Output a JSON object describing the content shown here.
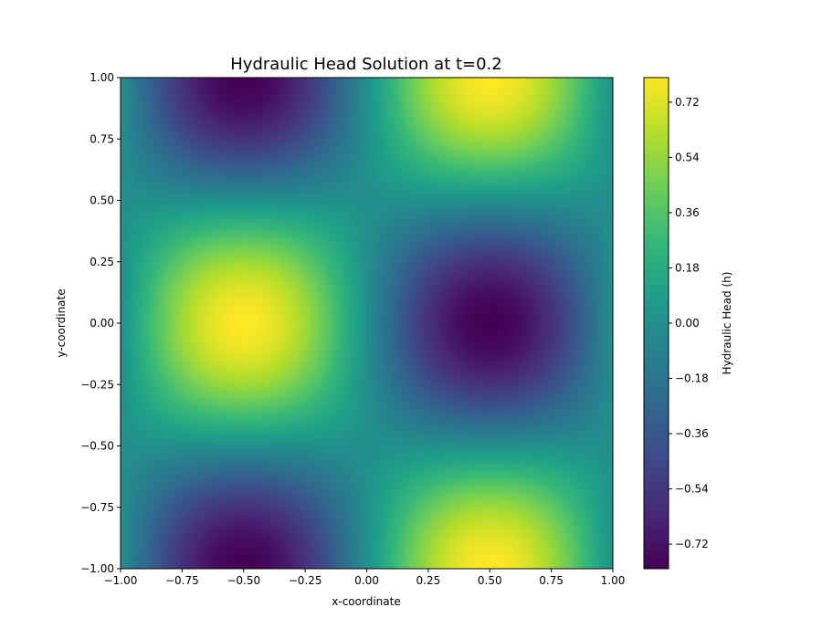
{
  "chart_data": {
    "type": "heatmap",
    "title": "Hydraulic Head Solution at t=0.2",
    "xlabel": "x-coordinate",
    "ylabel": "y-coordinate",
    "xlim": [
      -1.0,
      1.0
    ],
    "ylim": [
      -1.0,
      1.0
    ],
    "x_ticks": [
      -1.0,
      -0.75,
      -0.5,
      -0.25,
      0.0,
      0.25,
      0.5,
      0.75,
      1.0
    ],
    "y_ticks": [
      -1.0,
      -0.75,
      -0.5,
      -0.25,
      0.0,
      0.25,
      0.5,
      0.75,
      1.0
    ],
    "x_tick_labels": [
      "−1.00",
      "−0.75",
      "−0.50",
      "−0.25",
      "0.00",
      "0.25",
      "0.50",
      "0.75",
      "1.00"
    ],
    "y_tick_labels": [
      "−1.00",
      "−0.75",
      "−0.50",
      "−0.25",
      "0.00",
      "0.25",
      "0.50",
      "0.75",
      "1.00"
    ],
    "field": {
      "function": "-amplitude * sin(pi*x) * cos(pi*y)",
      "amplitude": 0.8,
      "grid": false
    },
    "colorbar": {
      "label": "Hydraulic Head (h)",
      "colormap": "viridis",
      "vmin": -0.8,
      "vmax": 0.8,
      "ticks": [
        -0.72,
        -0.54,
        -0.36,
        -0.18,
        0.0,
        0.18,
        0.36,
        0.54,
        0.72
      ],
      "tick_labels": [
        "−0.72",
        "−0.54",
        "−0.36",
        "−0.18",
        "0.00",
        "0.18",
        "0.36",
        "0.54",
        "0.72"
      ]
    },
    "viridis_stops": [
      "#440154",
      "#482878",
      "#3e4989",
      "#31688e",
      "#26828e",
      "#1f9e89",
      "#35b779",
      "#6ece58",
      "#b5de2b",
      "#fde725"
    ]
  }
}
